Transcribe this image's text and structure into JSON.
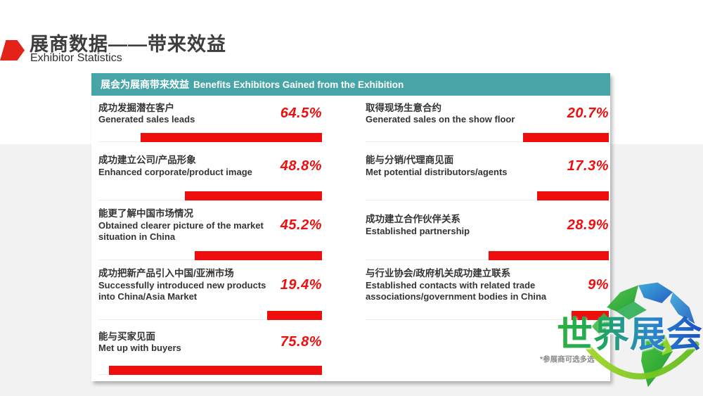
{
  "header": {
    "title_zh": "展商数据——带来效益",
    "subtitle_en": "Exhibitor Statistics"
  },
  "panel": {
    "header_zh": "展会为展商带来效益",
    "header_en": "Benefits Exhibitors Gained from the Exhibition",
    "footnote": "*参展商可选多选"
  },
  "watermark": {
    "text": "世界展会"
  },
  "colors": {
    "accent_red": "#ee0e0e",
    "teal_header": "#48a5a7",
    "page_band_gray": "#f2f2f2",
    "label_text": "#343434"
  },
  "chart_data": {
    "type": "bar",
    "orientation": "horizontal",
    "title": "展会为展商带来效益 Benefits Exhibitors Gained from the Exhibition",
    "unit": "percent",
    "value_range": [
      0,
      100
    ],
    "columns": {
      "left": [
        {
          "label_zh": "成功发掘潜在客户",
          "label_en": "Generated sales leads",
          "value": 64.5,
          "display": "64.5%"
        },
        {
          "label_zh": "成功建立公司/产品形象",
          "label_en": "Enhanced corporate/product image",
          "value": 48.8,
          "display": "48.8%"
        },
        {
          "label_zh": "能更了解中国市场情况",
          "label_en": "Obtained clearer picture of the market situation in China",
          "value": 45.2,
          "display": "45.2%"
        },
        {
          "label_zh": "成功把新产品引入中国/亚洲市场",
          "label_en": "Successfully introduced new products into China/Asia Market",
          "value": 19.4,
          "display": "19.4%"
        },
        {
          "label_zh": "能与买家见面",
          "label_en": "Met up with buyers",
          "value": 75.8,
          "display": "75.8%"
        }
      ],
      "right": [
        {
          "label_zh": "取得现场生意合约",
          "label_en": "Generated sales on the show floor",
          "value": 20.7,
          "display": "20.7%"
        },
        {
          "label_zh": "能与分销/代理商见面",
          "label_en": "Met potential distributors/agents",
          "value": 17.3,
          "display": "17.3%"
        },
        {
          "label_zh": "成功建立合作伙伴关系",
          "label_en": "Established partnership",
          "value": 28.9,
          "display": "28.9%"
        },
        {
          "label_zh": "与行业协会/政府机关成功建立联系",
          "label_en": "Established contacts with related trade associations/government bodies in China",
          "value": 9,
          "display": "9%"
        }
      ]
    }
  }
}
